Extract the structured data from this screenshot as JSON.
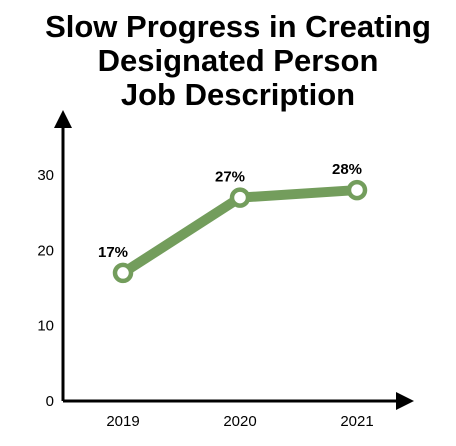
{
  "chart_data": {
    "type": "line",
    "title_lines": [
      "Slow Progress in Creating",
      "Designated Person",
      "Job Description"
    ],
    "categories": [
      "2019",
      "2020",
      "2021"
    ],
    "series": [
      {
        "values": [
          17,
          27,
          28
        ],
        "labels": [
          "17%",
          "27%",
          "28%"
        ]
      }
    ],
    "ylim": [
      0,
      30
    ],
    "yticks": [
      "0",
      "10",
      "20",
      "30"
    ],
    "xlabel": "",
    "ylabel": "",
    "grid": false,
    "legend": "none",
    "colors": {
      "line": "#739d5c",
      "axis": "#000000",
      "marker_fill": "#ffffff"
    }
  }
}
